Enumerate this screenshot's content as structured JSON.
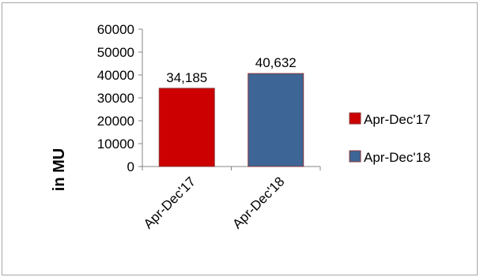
{
  "chart_data": {
    "type": "bar",
    "categories": [
      "Apr-Dec'17",
      "Apr-Dec'18"
    ],
    "values": [
      34185,
      40632
    ],
    "data_labels": [
      "34,185",
      "40,632"
    ],
    "series": [
      {
        "name": "Apr-Dec'17",
        "color": "#cc0000"
      },
      {
        "name": "Apr-Dec'18",
        "color": "#3d6595"
      }
    ],
    "bar_stroke": "#8b3a3a",
    "title": "",
    "xlabel": "",
    "ylabel": "in MU",
    "ylim": [
      0,
      60000
    ],
    "yticks": [
      0,
      10000,
      20000,
      30000,
      40000,
      50000,
      60000
    ],
    "ytick_labels": [
      "0",
      "10000",
      "20000",
      "30000",
      "40000",
      "50000",
      "60000"
    ],
    "grid": false,
    "legend_position": "right"
  }
}
